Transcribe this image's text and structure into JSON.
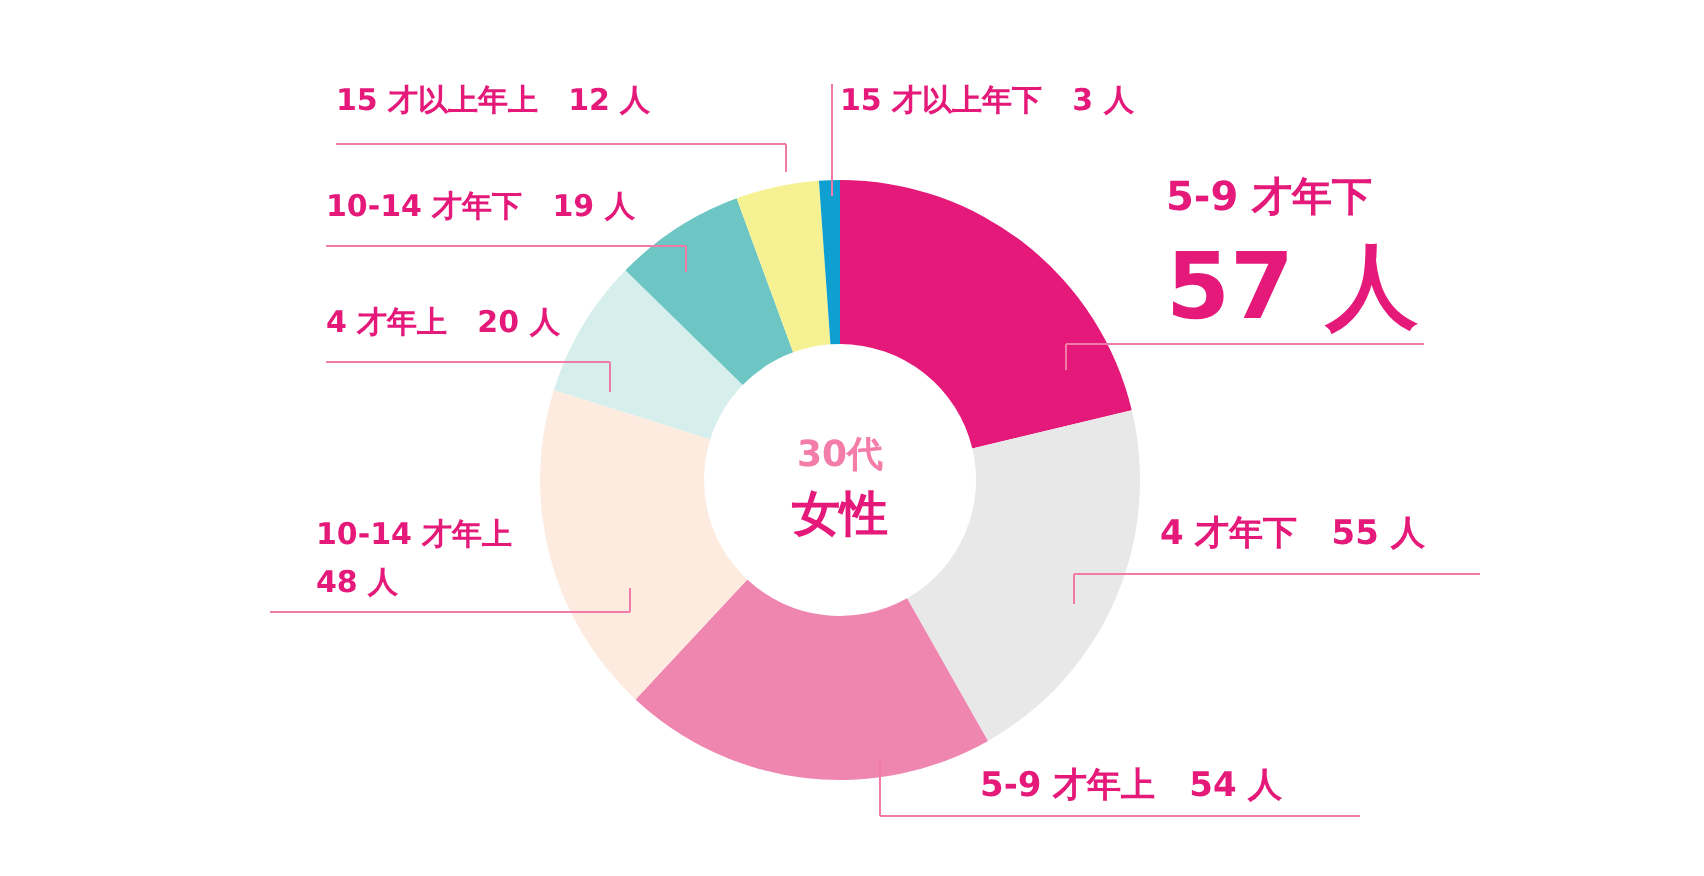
{
  "chart_data": {
    "type": "donut",
    "title": "30代",
    "subtitle": "女性",
    "categories": [
      "5-9 才年下",
      "4 才年下",
      "5-9 才年上",
      "10-14 才年上",
      "4 才年上",
      "10-14 才年下",
      "15 才以上年上",
      "15 才以上年下"
    ],
    "values": [
      57,
      55,
      54,
      48,
      20,
      19,
      12,
      3
    ],
    "value_labels": [
      "57 人",
      "55 人",
      "54 人",
      "48 人",
      "20 人",
      "19 人",
      "12 人",
      "3 人"
    ],
    "colors": [
      "#e4197a",
      "#e8e8e8",
      "#ef86b0",
      "#fdebe0",
      "#d6efec",
      "#6dc6c3",
      "#f6f294",
      "#0fa0d1"
    ]
  }
}
